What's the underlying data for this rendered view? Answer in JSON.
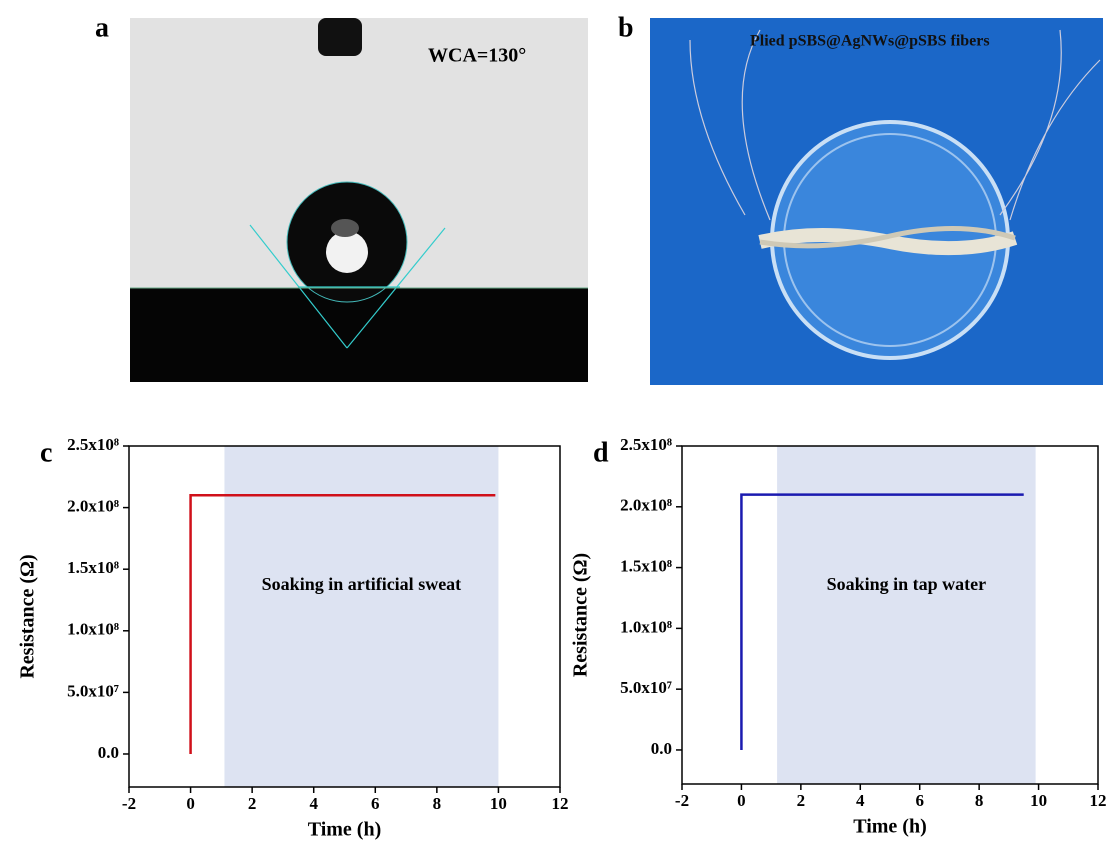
{
  "panels": {
    "a": {
      "label": "a",
      "text": "WCA=130°"
    },
    "b": {
      "label": "b",
      "text": "Plied pSBS@AgNWs@pSBS fibers"
    }
  },
  "chart_data": [
    {
      "type": "line",
      "panel_label": "c",
      "annotation": "Soaking in artificial sweat",
      "xlabel": "Time (h)",
      "ylabel": "Resistance (Ω)",
      "x": [
        0,
        0,
        9.9
      ],
      "series": [
        {
          "color": "#d0101a",
          "values": [
            0,
            210000000,
            210000000
          ]
        }
      ],
      "shade": [
        1.1,
        10
      ],
      "shade_color": "#dde3f2",
      "xlim": [
        -2,
        12
      ],
      "xticks": [
        -2,
        0,
        2,
        4,
        6,
        8,
        10,
        12
      ],
      "ylim": [
        -26800000,
        250000000
      ],
      "yticks": [
        {
          "value": 0,
          "label": "0.0"
        },
        {
          "value": 50000000,
          "label": "5.0x10⁷"
        },
        {
          "value": 100000000,
          "label": "1.0x10⁸"
        },
        {
          "value": 150000000,
          "label": "1.5x10⁸"
        },
        {
          "value": 200000000,
          "label": "2.0x10⁸"
        },
        {
          "value": 250000000,
          "label": "2.5x10⁸"
        }
      ]
    },
    {
      "type": "line",
      "panel_label": "d",
      "annotation": "Soaking in tap water",
      "xlabel": "Time (h)",
      "ylabel": "Resistance (Ω)",
      "x": [
        0,
        0,
        9.5
      ],
      "series": [
        {
          "color": "#1a1ab0",
          "values": [
            0,
            210000000,
            210000000
          ]
        }
      ],
      "shade": [
        1.2,
        9.9
      ],
      "shade_color": "#dde3f2",
      "xlim": [
        -2,
        12
      ],
      "xticks": [
        -2,
        0,
        2,
        4,
        6,
        8,
        10,
        12
      ],
      "ylim": [
        -28000000,
        250000000
      ],
      "yticks": [
        {
          "value": 0,
          "label": "0.0"
        },
        {
          "value": 50000000,
          "label": "5.0x10⁷"
        },
        {
          "value": 100000000,
          "label": "1.0x10⁸"
        },
        {
          "value": 150000000,
          "label": "1.5x10⁸"
        },
        {
          "value": 200000000,
          "label": "2.0x10⁸"
        },
        {
          "value": 250000000,
          "label": "2.5x10⁸"
        }
      ]
    }
  ]
}
